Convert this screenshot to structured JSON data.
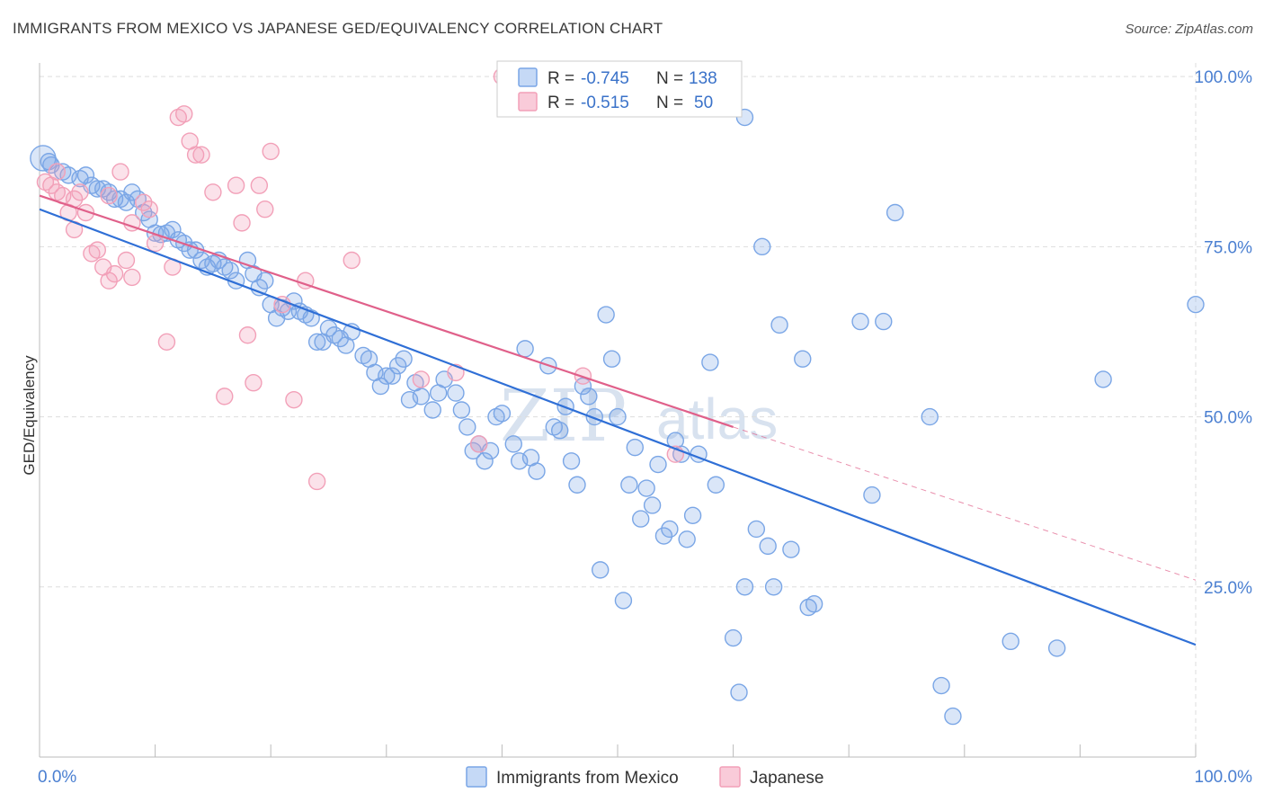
{
  "title": "IMMIGRANTS FROM MEXICO VS JAPANESE GED/EQUIVALENCY CORRELATION CHART",
  "source": "Source: ZipAtlas.com",
  "watermark": {
    "zip": "ZIP",
    "atlas": "atlas"
  },
  "colors": {
    "blue": "#7aa6e6",
    "blue_line": "#2f6fd6",
    "pink": "#f2a0b8",
    "pink_line": "#e0608a",
    "grid": "#dddddd",
    "tick_text": "#4a7fd1"
  },
  "chart_data": {
    "type": "scatter",
    "title": "",
    "xlabel": "",
    "ylabel": "GED/Equivalency",
    "xlim": [
      0,
      100
    ],
    "ylim": [
      0,
      102
    ],
    "x_tick_labels": {
      "left": "0.0%",
      "right": "100.0%"
    },
    "y_ticks": [
      {
        "value": 100,
        "label": "100.0%"
      },
      {
        "value": 75,
        "label": "75.0%"
      },
      {
        "value": 50,
        "label": "50.0%"
      },
      {
        "value": 25,
        "label": "25.0%"
      }
    ],
    "grid": true,
    "legend_top": {
      "placement": "top-center",
      "rows": [
        {
          "r_label": "R =",
          "r": "-0.745",
          "n_label": "N =",
          "n": "138"
        },
        {
          "r_label": "R =",
          "r": "-0.515",
          "n_label": "N =",
          "n": "50"
        }
      ]
    },
    "series": [
      {
        "name": "Immigrants from Mexico",
        "color": "#7aa6e6",
        "trend": {
          "x0": 0,
          "y0": 80.5,
          "x1": 100,
          "y1": 16.5
        },
        "points": [
          [
            0.3,
            88
          ],
          [
            0.8,
            87.5
          ],
          [
            1,
            87
          ],
          [
            2,
            86
          ],
          [
            2.5,
            85.5
          ],
          [
            3.5,
            85
          ],
          [
            4,
            85.5
          ],
          [
            4.5,
            84
          ],
          [
            5,
            83.5
          ],
          [
            5.5,
            83.5
          ],
          [
            6,
            83
          ],
          [
            6.5,
            82
          ],
          [
            7,
            82
          ],
          [
            7.5,
            81.5
          ],
          [
            8,
            83
          ],
          [
            8.5,
            82
          ],
          [
            9,
            80
          ],
          [
            9.5,
            79
          ],
          [
            10,
            77
          ],
          [
            10.5,
            76.8
          ],
          [
            11,
            77
          ],
          [
            11.5,
            77.5
          ],
          [
            12,
            76
          ],
          [
            12.5,
            75.5
          ],
          [
            13,
            74.5
          ],
          [
            13.5,
            74.5
          ],
          [
            14,
            73
          ],
          [
            14.5,
            72
          ],
          [
            15,
            72.5
          ],
          [
            15.5,
            73
          ],
          [
            16,
            72
          ],
          [
            16.5,
            71.5
          ],
          [
            17,
            70
          ],
          [
            18,
            73
          ],
          [
            18.5,
            71
          ],
          [
            19,
            69
          ],
          [
            19.5,
            70
          ],
          [
            20,
            66.5
          ],
          [
            20.5,
            64.5
          ],
          [
            21,
            66
          ],
          [
            21.5,
            65.5
          ],
          [
            22,
            67
          ],
          [
            22.5,
            65.5
          ],
          [
            23,
            65
          ],
          [
            23.5,
            64.5
          ],
          [
            24,
            61
          ],
          [
            24.5,
            61
          ],
          [
            25,
            63
          ],
          [
            25.5,
            62
          ],
          [
            26,
            61.5
          ],
          [
            26.5,
            60.5
          ],
          [
            27,
            62.5
          ],
          [
            28,
            59
          ],
          [
            28.5,
            58.5
          ],
          [
            29,
            56.5
          ],
          [
            29.5,
            54.5
          ],
          [
            30,
            56
          ],
          [
            30.5,
            56
          ],
          [
            31,
            57.5
          ],
          [
            31.5,
            58.5
          ],
          [
            32,
            52.5
          ],
          [
            32.5,
            55
          ],
          [
            33,
            53
          ],
          [
            34,
            51
          ],
          [
            34.5,
            53.5
          ],
          [
            35,
            55.5
          ],
          [
            36,
            53.5
          ],
          [
            36.5,
            51
          ],
          [
            37,
            48.5
          ],
          [
            37.5,
            45
          ],
          [
            38,
            46
          ],
          [
            38.5,
            43.5
          ],
          [
            39,
            45
          ],
          [
            39.5,
            50
          ],
          [
            40,
            50.5
          ],
          [
            41,
            46
          ],
          [
            41.5,
            43.5
          ],
          [
            42,
            60
          ],
          [
            42.5,
            44
          ],
          [
            43,
            42
          ],
          [
            44,
            57.5
          ],
          [
            44.5,
            48.5
          ],
          [
            45,
            48
          ],
          [
            45.5,
            51.5
          ],
          [
            46,
            43.5
          ],
          [
            46.5,
            40
          ],
          [
            47,
            54.5
          ],
          [
            47.5,
            53
          ],
          [
            48,
            50
          ],
          [
            48.5,
            27.5
          ],
          [
            49,
            65
          ],
          [
            49.5,
            58.5
          ],
          [
            50,
            50
          ],
          [
            50.5,
            23
          ],
          [
            51,
            40
          ],
          [
            51.5,
            45.5
          ],
          [
            52,
            35
          ],
          [
            52.5,
            39.5
          ],
          [
            53,
            37
          ],
          [
            53.5,
            43
          ],
          [
            54,
            32.5
          ],
          [
            54.5,
            33.5
          ],
          [
            55,
            46.5
          ],
          [
            55.5,
            44.5
          ],
          [
            56,
            32
          ],
          [
            56.5,
            35.5
          ],
          [
            57,
            44.5
          ],
          [
            58,
            58
          ],
          [
            58.5,
            40
          ],
          [
            60,
            17.5
          ],
          [
            60.5,
            9.5
          ],
          [
            61,
            25
          ],
          [
            62,
            33.5
          ],
          [
            62.5,
            75
          ],
          [
            63,
            31
          ],
          [
            63.5,
            25
          ],
          [
            64,
            63.5
          ],
          [
            65,
            30.5
          ],
          [
            66,
            58.5
          ],
          [
            66.5,
            22
          ],
          [
            67,
            22.5
          ],
          [
            71,
            64
          ],
          [
            72,
            38.5
          ],
          [
            73,
            64
          ],
          [
            74,
            80
          ],
          [
            77,
            50
          ],
          [
            78,
            10.5
          ],
          [
            79,
            6
          ],
          [
            84,
            17
          ],
          [
            88,
            16
          ],
          [
            92,
            55.5
          ],
          [
            100,
            66.5
          ],
          [
            61,
            94
          ],
          [
            55,
            100
          ]
        ]
      },
      {
        "name": "Japanese",
        "color": "#f2a0b8",
        "trend": {
          "x0": 0,
          "y0": 82.5,
          "x1": 60,
          "y1": 48.5,
          "dashed_to": {
            "x": 100,
            "y": 26
          }
        },
        "points": [
          [
            0.5,
            84.5
          ],
          [
            1,
            84
          ],
          [
            1.5,
            83
          ],
          [
            2,
            82.5
          ],
          [
            2.5,
            80
          ],
          [
            3,
            77.5
          ],
          [
            3.5,
            83
          ],
          [
            4,
            80
          ],
          [
            4.5,
            74
          ],
          [
            5,
            74.5
          ],
          [
            5.5,
            72
          ],
          [
            6,
            70
          ],
          [
            6.5,
            71
          ],
          [
            7,
            86
          ],
          [
            7.5,
            73
          ],
          [
            8,
            70.5
          ],
          [
            9,
            81.5
          ],
          [
            9.5,
            80.5
          ],
          [
            10,
            75.5
          ],
          [
            11,
            61
          ],
          [
            11.5,
            72
          ],
          [
            12,
            94
          ],
          [
            12.5,
            94.5
          ],
          [
            13,
            90.5
          ],
          [
            13.5,
            88.5
          ],
          [
            14,
            88.5
          ],
          [
            15,
            83
          ],
          [
            16,
            53
          ],
          [
            17,
            84
          ],
          [
            17.5,
            78.5
          ],
          [
            18,
            62
          ],
          [
            18.5,
            55
          ],
          [
            19,
            84
          ],
          [
            19.5,
            80.5
          ],
          [
            20,
            89
          ],
          [
            21,
            66.5
          ],
          [
            22,
            52.5
          ],
          [
            23,
            70
          ],
          [
            24,
            40.5
          ],
          [
            27,
            73
          ],
          [
            33,
            55.5
          ],
          [
            36,
            56.5
          ],
          [
            38,
            46
          ],
          [
            40,
            100
          ],
          [
            47,
            56
          ],
          [
            55,
            44.5
          ],
          [
            8,
            78.5
          ],
          [
            6,
            82.5
          ],
          [
            3,
            82
          ],
          [
            1.5,
            86
          ]
        ]
      }
    ]
  },
  "legend_bottom": {
    "items": [
      {
        "label": "Immigrants from Mexico"
      },
      {
        "label": "Japanese"
      }
    ]
  }
}
